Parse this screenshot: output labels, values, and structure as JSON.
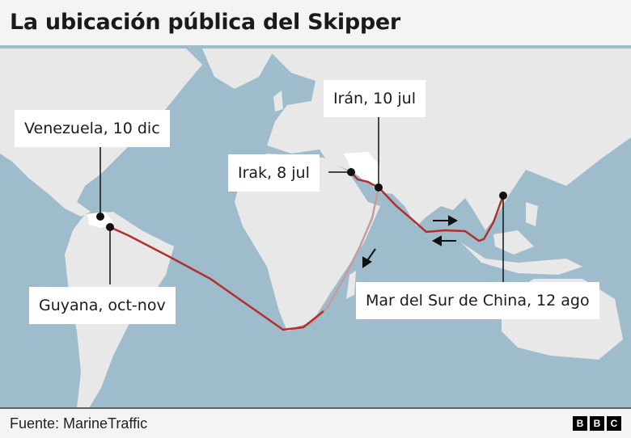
{
  "title": "La ubicación pública del Skipper",
  "labels": {
    "venezuela": "Venezuela, 10 dic",
    "guyana": "Guyana, oct-nov",
    "irak": "Irak, 8 jul",
    "iran": "Irán, 10 jul",
    "china": "Mar del Sur de China, 12 ago"
  },
  "footer": {
    "source": "Fuente: MarineTraffic",
    "logo": [
      "B",
      "B",
      "C"
    ]
  },
  "colors": {
    "ocean": "#9fbccd",
    "land": "#e8e8e8",
    "route": "#b0302c",
    "route_faded": "#c99a9a"
  }
}
